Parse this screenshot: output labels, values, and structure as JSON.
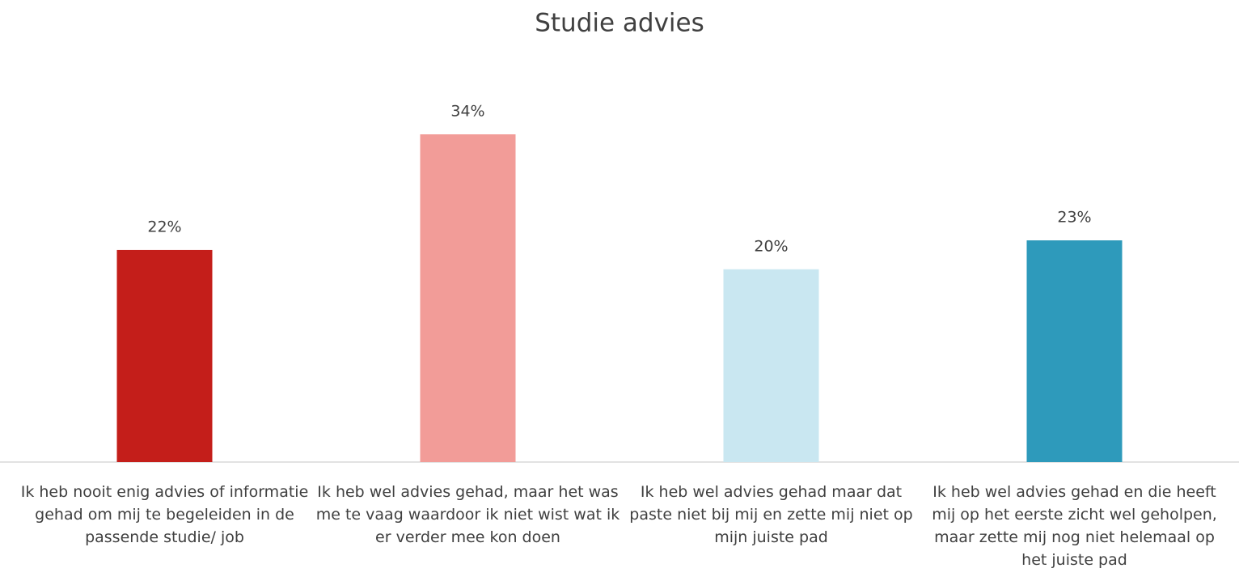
{
  "chart_data": {
    "type": "bar",
    "title": "Studie advies",
    "categories": [
      "Ik heb nooit enig advies of informatie gehad om mij te begeleiden in de passende studie/ job",
      "Ik heb wel advies gehad, maar het was me te vaag waardoor ik niet wist wat ik er verder mee kon doen",
      "Ik heb wel advies gehad maar dat paste niet bij mij en zette mij niet op mijn juiste pad",
      "Ik heb wel advies gehad en die heeft mij op het eerste zicht wel geholpen, maar zette mij nog niet helemaal op het juiste pad"
    ],
    "values": [
      22,
      34,
      20,
      23
    ],
    "value_labels": [
      "22%",
      "34%",
      "20%",
      "23%"
    ],
    "colors": [
      "#c41e1a",
      "#f29c98",
      "#c9e7f1",
      "#2e9abb"
    ]
  }
}
